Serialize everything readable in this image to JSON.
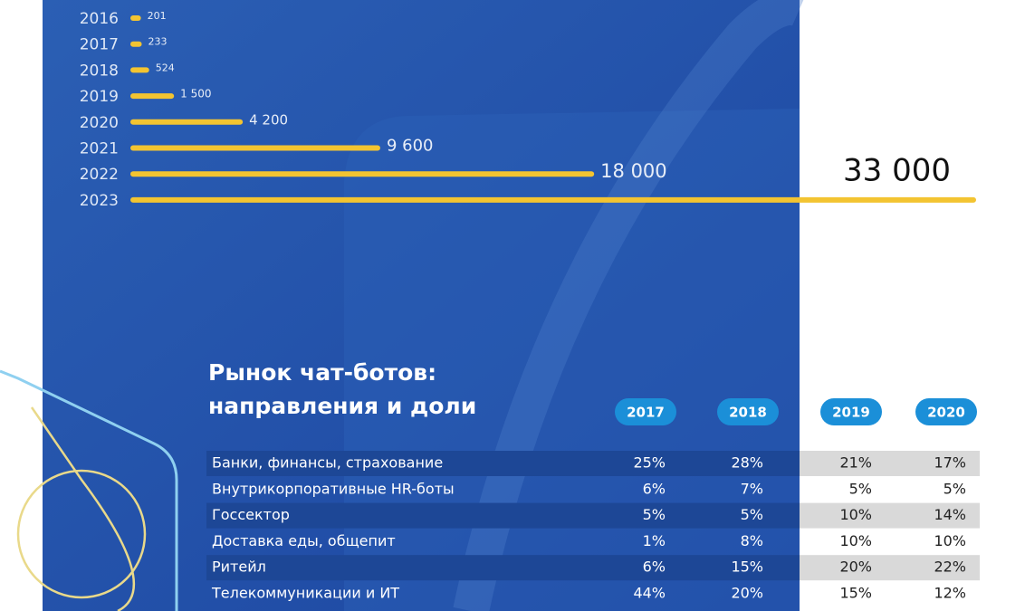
{
  "chart_data": {
    "type": "bar",
    "orientation": "horizontal",
    "categories": [
      "2016",
      "2017",
      "2018",
      "2019",
      "2020",
      "2021",
      "2022",
      "2023"
    ],
    "values": [
      201,
      233,
      524,
      1500,
      4200,
      9600,
      18000,
      33000
    ],
    "value_labels": [
      "201",
      "233",
      "524",
      "1 500",
      "4 200",
      "9 600",
      "18 000",
      "33 000"
    ],
    "color": "#f3c431",
    "xlim": [
      0,
      33000
    ]
  },
  "table": {
    "title": [
      "Рынок чат-ботов:",
      "направления и доли"
    ],
    "columns": [
      "2017",
      "2018",
      "2019",
      "2020"
    ],
    "rows": [
      [
        "Банки, финансы, страхование",
        "25%",
        "28%",
        "21%",
        "17%"
      ],
      [
        "Внутрикорпоративные HR-боты",
        "6%",
        "7%",
        "5%",
        "5%"
      ],
      [
        "Госсектор",
        "5%",
        "5%",
        "10%",
        "14%"
      ],
      [
        "Доставка еды, общепит",
        "1%",
        "8%",
        "10%",
        "10%"
      ],
      [
        "Ритейл",
        "6%",
        "15%",
        "20%",
        "22%"
      ],
      [
        "Телекоммуникации и ИТ",
        "44%",
        "20%",
        "15%",
        "12%"
      ]
    ]
  }
}
